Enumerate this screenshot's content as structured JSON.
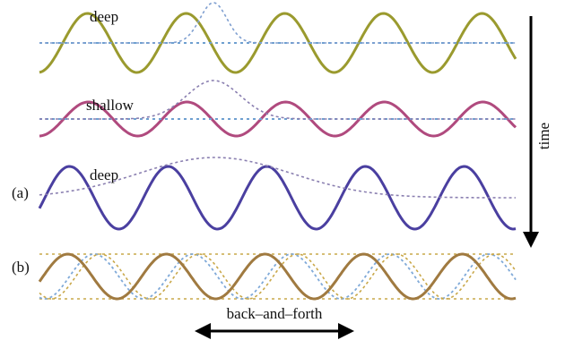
{
  "labels": {
    "deep_top": "deep",
    "shallow": "shallow",
    "deep_lower": "deep",
    "panel_a": "(a)",
    "panel_b": "(b)",
    "time": "time",
    "back_and_forth": "back–and–forth"
  },
  "waves": [
    {
      "name": "deep-wave-top",
      "color": "#9a9a2e",
      "envelope_color": "#7f9fd0",
      "envelope": "localized narrow peak"
    },
    {
      "name": "shallow-wave",
      "color": "#b04a7e",
      "envelope_color": "#8a7fb0",
      "envelope": "localized wide peak"
    },
    {
      "name": "deep-wave-lower",
      "color": "#4a3fa0",
      "envelope_color": "#8a7fb0",
      "envelope": "broad spread"
    },
    {
      "name": "standing-wave",
      "color": "#a07a40",
      "dashed_colors": [
        "#c9a84a",
        "#7fa9d8"
      ]
    }
  ],
  "arrows": {
    "time": "downward",
    "back_and_forth": "bidirectional"
  },
  "colors": {
    "axis": "#000000",
    "baseline_dotted": "#6fa0d0"
  }
}
